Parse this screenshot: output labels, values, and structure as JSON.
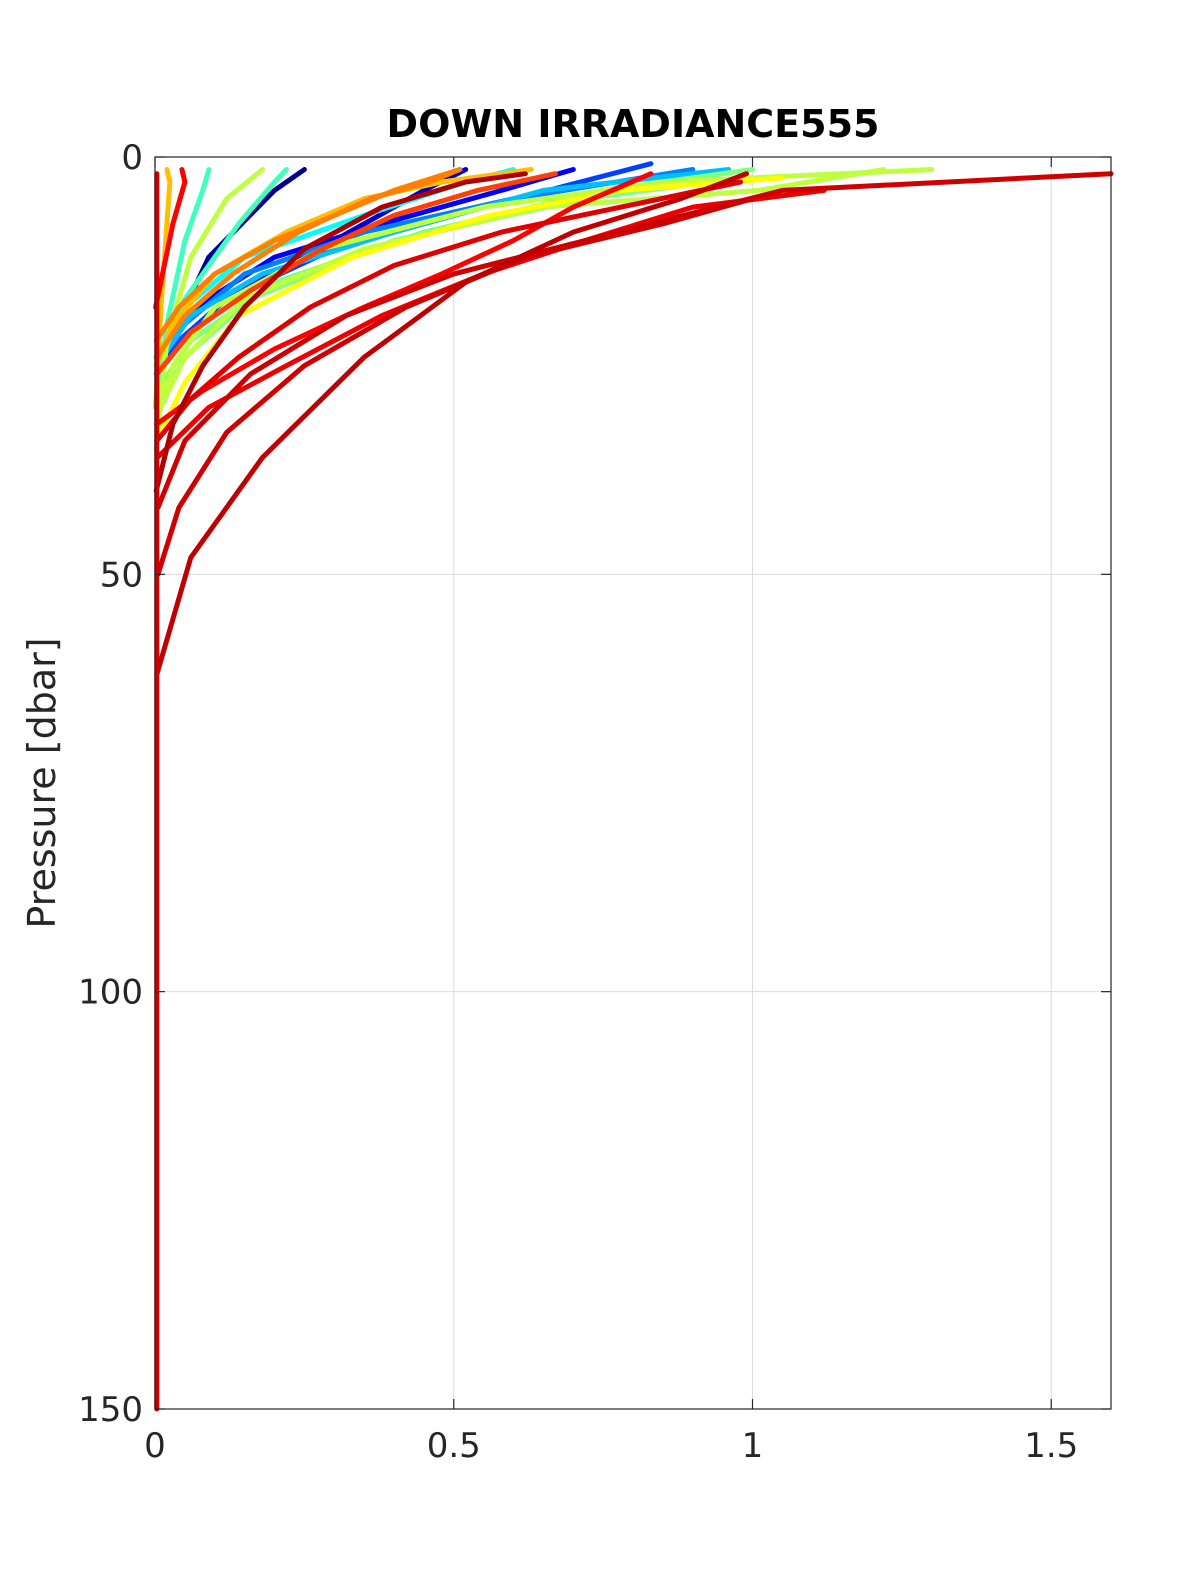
{
  "chart_data": {
    "type": "line",
    "title": "DOWN IRRADIANCE555",
    "xlabel": "",
    "ylabel": "Pressure [dbar]",
    "xlim": [
      0,
      1.6
    ],
    "ylim": [
      0,
      150
    ],
    "y_reversed": true,
    "grid": true,
    "legend": "none",
    "x_ticks": [
      0,
      0.5,
      1,
      1.5
    ],
    "x_tick_labels": [
      "0",
      "0.5",
      "1",
      "1.5"
    ],
    "y_ticks": [
      0,
      50,
      100,
      150
    ],
    "y_tick_labels": [
      "0",
      "50",
      "100",
      "150"
    ],
    "series": [
      {
        "color": "#00008f",
        "x": [
          0.004,
          0.09,
          0.2,
          0.25
        ],
        "y": [
          25,
          12,
          4,
          1.5
        ]
      },
      {
        "color": "#0000cc",
        "x": [
          0.003,
          0.04,
          0.12,
          0.3,
          0.45,
          0.52
        ],
        "y": [
          25,
          22,
          17,
          10,
          4,
          1.5
        ]
      },
      {
        "color": "#0000ff",
        "x": [
          0.002,
          0.03,
          0.09,
          0.2,
          0.38,
          0.58,
          0.7
        ],
        "y": [
          24,
          21,
          17,
          12,
          8,
          4,
          1.5
        ]
      },
      {
        "color": "#0040ff",
        "x": [
          0.002,
          0.04,
          0.12,
          0.3,
          0.55,
          0.83
        ],
        "y": [
          26,
          22,
          17,
          11,
          6,
          0.8
        ]
      },
      {
        "color": "#0080ff",
        "x": [
          0.003,
          0.05,
          0.15,
          0.35,
          0.6,
          0.9
        ],
        "y": [
          24,
          20,
          14,
          9,
          5,
          1.5
        ]
      },
      {
        "color": "#00bfff",
        "x": [
          0.003,
          0.06,
          0.18,
          0.4,
          0.65,
          0.96
        ],
        "y": [
          25,
          19,
          14,
          9,
          4,
          1.5
        ]
      },
      {
        "color": "#00ffff",
        "x": [
          0.002,
          0.05,
          0.15,
          0.35,
          0.52,
          0.6
        ],
        "y": [
          24,
          18,
          12,
          7,
          3,
          1.5
        ]
      },
      {
        "color": "#40ffbf",
        "x": [
          0.002,
          0.02,
          0.05,
          0.08,
          0.09
        ],
        "y": [
          30,
          20,
          10,
          4,
          1.5
        ]
      },
      {
        "color": "#40ffbf",
        "x": [
          0.002,
          0.05,
          0.14,
          0.2,
          0.22
        ],
        "y": [
          26,
          17,
          8,
          3,
          1.5
        ]
      },
      {
        "color": "#80ff80",
        "x": [
          0.003,
          0.06,
          0.2,
          0.45,
          0.75,
          1.0
        ],
        "y": [
          28,
          22,
          15,
          9,
          4,
          1.5
        ]
      },
      {
        "color": "#80ff80",
        "x": [
          0.002,
          0.05,
          0.16,
          0.4,
          0.72,
          0.98
        ],
        "y": [
          30,
          24,
          17,
          10,
          5,
          2.5
        ]
      },
      {
        "color": "#bfff40",
        "x": [
          0.002,
          0.02,
          0.06,
          0.12,
          0.18
        ],
        "y": [
          35,
          22,
          12,
          5,
          1.5
        ]
      },
      {
        "color": "#bfff40",
        "x": [
          0.002,
          0.03,
          0.1,
          0.28,
          0.55,
          0.85,
          1.3
        ],
        "y": [
          32,
          25,
          18,
          11,
          6,
          3,
          1.5
        ]
      },
      {
        "color": "#bfff40",
        "x": [
          0.003,
          0.05,
          0.15,
          0.35,
          0.65,
          1.01,
          1.22
        ],
        "y": [
          31,
          24,
          17,
          11,
          6,
          4,
          1.5
        ]
      },
      {
        "color": "#ffff00",
        "x": [
          0.003,
          0.05,
          0.14,
          0.33,
          0.56,
          0.78,
          1.05
        ],
        "y": [
          34,
          27,
          19,
          12,
          7,
          4,
          2.5
        ]
      },
      {
        "color": "#ffbf00",
        "x": [
          0.001,
          0.01,
          0.02,
          0.025,
          0.02
        ],
        "y": [
          30,
          18,
          8,
          3,
          1.5
        ]
      },
      {
        "color": "#ffbf00",
        "x": [
          0.002,
          0.03,
          0.1,
          0.22,
          0.35,
          0.48,
          0.63
        ],
        "y": [
          25,
          20,
          14,
          9,
          5,
          3,
          1.5
        ]
      },
      {
        "color": "#ff8000",
        "x": [
          0.002,
          0.04,
          0.1,
          0.2,
          0.3,
          0.4,
          0.51
        ],
        "y": [
          22,
          18,
          14,
          10,
          7,
          4,
          1.5
        ]
      },
      {
        "color": "#ff8000",
        "x": [
          0.003,
          0.05,
          0.13,
          0.24,
          0.36,
          0.46,
          0.51
        ],
        "y": [
          24,
          19,
          14,
          9,
          5,
          3,
          1.5
        ]
      },
      {
        "color": "#ff4000",
        "x": [
          0.003,
          0.06,
          0.16,
          0.28,
          0.4,
          0.54,
          0.67
        ],
        "y": [
          26,
          21,
          16,
          11,
          7,
          4,
          2
        ]
      },
      {
        "color": "#ff0000",
        "x": [
          0.001,
          0.03,
          0.05,
          0.045
        ],
        "y": [
          18,
          8,
          3,
          1.5
        ]
      },
      {
        "color": "#ff0000",
        "x": [
          0.003,
          0.08,
          0.2,
          0.35,
          0.48,
          0.6,
          0.7,
          0.83
        ],
        "y": [
          32,
          28,
          23,
          18,
          14,
          10,
          6,
          2
        ]
      },
      {
        "color": "#ef0000",
        "x": [
          0.004,
          0.09,
          0.22,
          0.38,
          0.55,
          0.72,
          0.9,
          1.12
        ],
        "y": [
          36,
          30,
          25,
          19,
          14,
          10,
          6,
          4
        ]
      },
      {
        "color": "#df0000",
        "x": [
          0.003,
          0.06,
          0.14,
          0.26,
          0.4,
          0.58,
          0.78,
          0.98
        ],
        "y": [
          34,
          29,
          24,
          18,
          13,
          9,
          6,
          3
        ]
      },
      {
        "color": "#cf0000",
        "x": [
          0.005,
          0.04,
          0.12,
          0.25,
          0.42,
          0.62,
          0.85,
          1.0
        ],
        "y": [
          50,
          42,
          33,
          25,
          18,
          12,
          8,
          5
        ]
      },
      {
        "color": "#cf0000",
        "x": [
          0.005,
          0.05,
          0.16,
          0.32,
          0.5,
          0.72,
          1.05,
          1.6
        ],
        "y": [
          42,
          34,
          26,
          19,
          14,
          10,
          4,
          2
        ]
      },
      {
        "color": "#bf0000",
        "x": [
          0.003,
          0.06,
          0.18,
          0.35,
          0.52,
          0.7,
          0.88,
          0.99
        ],
        "y": [
          62,
          48,
          36,
          24,
          15,
          9,
          5,
          2
        ]
      },
      {
        "color": "#af0000",
        "x": [
          0.002,
          0.03,
          0.08,
          0.15,
          0.25,
          0.38,
          0.52,
          0.62
        ],
        "y": [
          40,
          32,
          25,
          18,
          11,
          6,
          3,
          2
        ]
      },
      {
        "color": "#cc0000",
        "x": [
          0.003,
          0.003,
          0.003
        ],
        "y": [
          150,
          80,
          2
        ]
      }
    ]
  }
}
